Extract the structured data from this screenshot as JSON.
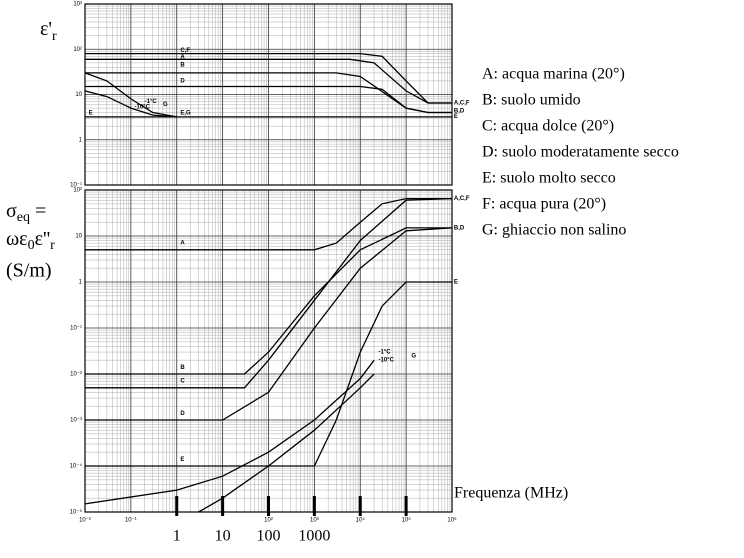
{
  "chart_data": [
    {
      "type": "line",
      "log_x": true,
      "log_y": true,
      "grid": true,
      "color": "#000000",
      "y_label": [
        "ε'",
        "r"
      ],
      "xlim": [
        0.01,
        1000000
      ],
      "ylim": [
        0.1,
        1000
      ],
      "xticks": [
        0.01,
        0.1,
        1,
        10,
        100,
        1000,
        10000,
        100000,
        1000000
      ],
      "yticks": [
        {
          "value": 0.1,
          "label": "10⁻¹"
        },
        1,
        10,
        {
          "value": 100,
          "label": "10²"
        },
        {
          "value": 1000,
          "label": "10³"
        }
      ],
      "series": [
        {
          "x": [
            0.01,
            10000,
            30000,
            100000,
            300000,
            1000000
          ],
          "values": [
            80,
            80,
            70,
            20,
            6.5,
            6.5
          ]
        },
        {
          "x": [
            0.01,
            6000,
            20000,
            100000,
            300000,
            1000000
          ],
          "values": [
            60,
            60,
            50,
            12,
            6.5,
            6.5
          ]
        },
        {
          "x": [
            0.01,
            3000,
            10000,
            100000,
            300000,
            1000000
          ],
          "values": [
            30,
            30,
            25,
            5,
            4,
            4
          ]
        },
        {
          "x": [
            0.01,
            10000,
            30000,
            100000,
            300000,
            1000000
          ],
          "values": [
            15,
            15,
            13,
            5,
            4,
            4
          ]
        },
        {
          "x": [
            0.01,
            1000000
          ],
          "values": [
            3.2,
            3.2
          ]
        },
        {
          "x": [
            0.01,
            0.03,
            0.1,
            0.3,
            1
          ],
          "values": [
            30,
            20,
            8,
            4,
            3.2
          ]
        },
        {
          "x": [
            0.01,
            0.03,
            0.1,
            0.3,
            1
          ],
          "values": [
            12,
            9,
            5,
            3.5,
            3.2
          ]
        }
      ],
      "annotations": [
        {
          "text": "C,F",
          "x": 1.2,
          "y": 95
        },
        {
          "text": "A",
          "x": 1.2,
          "y": 68
        },
        {
          "text": "B",
          "x": 1.2,
          "y": 45
        },
        {
          "text": "D",
          "x": 1.2,
          "y": 20
        },
        {
          "text": "E",
          "x": 0.012,
          "y": 3.9
        },
        {
          "text": "E,G",
          "x": 1.2,
          "y": 3.9
        },
        {
          "text": "-1°C",
          "x": 0.2,
          "y": 7
        },
        {
          "text": "-10°C",
          "x": 0.12,
          "y": 5.3
        },
        {
          "text": "G",
          "x": 0.5,
          "y": 6
        },
        {
          "text": "A,C,F",
          "x": 1100000,
          "y": 6.5
        },
        {
          "text": "B,D",
          "x": 1100000,
          "y": 4.3
        },
        {
          "text": "E",
          "x": 1100000,
          "y": 3.3
        }
      ]
    },
    {
      "type": "line",
      "log_x": true,
      "log_y": true,
      "grid": true,
      "color": "#000000",
      "y_label": [
        "σ",
        "eq",
        " =",
        "ωε",
        "0",
        "ε''",
        "r",
        "(S/m)"
      ],
      "x_label": "Frequenza (MHz)",
      "xlim": [
        0.01,
        1000000
      ],
      "ylim": [
        1e-05,
        100
      ],
      "xticks": [
        {
          "value": 0.01,
          "label": "10⁻²"
        },
        {
          "value": 0.1,
          "label": "10⁻¹"
        },
        1,
        10,
        {
          "value": 100,
          "label": "10²"
        },
        {
          "value": 1000,
          "label": "10³"
        },
        {
          "value": 10000,
          "label": "10⁴"
        },
        {
          "value": 100000,
          "label": "10⁵"
        },
        {
          "value": 1000000,
          "label": "10⁶"
        }
      ],
      "yticks": [
        {
          "value": 1e-05,
          "label": "10⁻⁵"
        },
        {
          "value": 0.0001,
          "label": "10⁻⁴"
        },
        {
          "value": 0.001,
          "label": "10⁻³"
        },
        {
          "value": 0.01,
          "label": "10⁻²"
        },
        {
          "value": 0.1,
          "label": "10⁻¹"
        },
        1,
        10,
        {
          "value": 100,
          "label": "10²"
        }
      ],
      "markers": [
        {
          "value": 1,
          "label": "1"
        },
        {
          "value": 10,
          "label": "10"
        },
        {
          "value": 100,
          "label": "100"
        },
        {
          "value": 1000,
          "label": "1000"
        },
        10000,
        100000
      ],
      "series": [
        {
          "x": [
            0.01,
            1000,
            3000,
            10000,
            30000,
            100000,
            1000000
          ],
          "values": [
            5,
            5,
            7,
            20,
            50,
            65,
            65
          ]
        },
        {
          "x": [
            0.01,
            30,
            100,
            1000,
            10000,
            100000,
            1000000
          ],
          "values": [
            0.01,
            0.01,
            0.03,
            0.5,
            5,
            15,
            15
          ]
        },
        {
          "x": [
            0.01,
            30,
            100,
            1000,
            10000,
            100000,
            1000000
          ],
          "values": [
            0.005,
            0.005,
            0.02,
            0.4,
            8,
            60,
            65
          ]
        },
        {
          "x": [
            0.01,
            10,
            100,
            1000,
            10000,
            100000,
            1000000
          ],
          "values": [
            0.001,
            0.001,
            0.004,
            0.1,
            2,
            13,
            15
          ]
        },
        {
          "x": [
            0.01,
            1000,
            3000,
            10000,
            30000,
            100000,
            1000000
          ],
          "values": [
            0.0001,
            0.0001,
            0.001,
            0.03,
            0.3,
            1,
            1
          ]
        },
        {
          "x": [
            0.01,
            1,
            10,
            100,
            1000,
            10000,
            20000
          ],
          "values": [
            1.5e-05,
            3e-05,
            6e-05,
            0.0002,
            0.001,
            0.008,
            0.02
          ]
        },
        {
          "x": [
            3,
            10,
            100,
            1000,
            10000,
            20000
          ],
          "values": [
            1e-05,
            2e-05,
            0.0001,
            0.0006,
            0.005,
            0.01
          ]
        }
      ],
      "annotations": [
        {
          "text": "A",
          "x": 1.2,
          "y": 7
        },
        {
          "text": "B",
          "x": 1.2,
          "y": 0.014
        },
        {
          "text": "C",
          "x": 1.2,
          "y": 0.007
        },
        {
          "text": "D",
          "x": 1.2,
          "y": 0.0014
        },
        {
          "text": "E",
          "x": 1.2,
          "y": 0.00014
        },
        {
          "text": "-1°C",
          "x": 25000,
          "y": 0.03
        },
        {
          "text": "-10°C",
          "x": 25000,
          "y": 0.02
        },
        {
          "text": "G",
          "x": 130000,
          "y": 0.025
        },
        {
          "text": "A,C,F",
          "x": 1100000,
          "y": 65
        },
        {
          "text": "B,D",
          "x": 1100000,
          "y": 15
        },
        {
          "text": "E",
          "x": 1100000,
          "y": 1
        }
      ]
    }
  ],
  "legend": [
    "A: acqua marina (20°)",
    "B: suolo umido",
    "C: acqua dolce (20°)",
    "D: suolo moderatamente secco",
    "E: suolo molto secco",
    "F: acqua pura (20°)",
    "G: ghiaccio non salino"
  ]
}
